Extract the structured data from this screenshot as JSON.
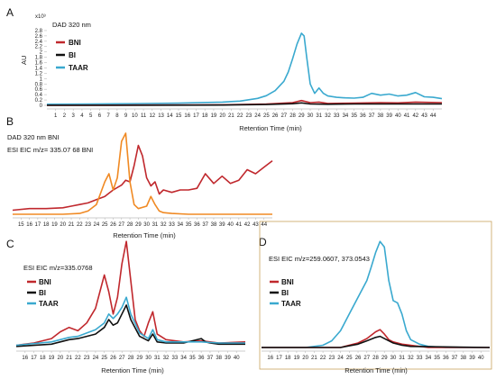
{
  "colors": {
    "BNI": "#c0282d",
    "BI": "#111111",
    "TAAR": "#3aa9cf",
    "EIC": "#f08a24",
    "axis": "#bbbbbb",
    "frame": "#c9a25c"
  },
  "chart_data": [
    {
      "panel": "A",
      "type": "line",
      "annotation": "DAD 320 nm",
      "xlabel": "Retention Time (min)",
      "ylabel": "AU",
      "yscale_label": "x10³",
      "xlim": [
        0,
        45
      ],
      "ylim": [
        0,
        3.0
      ],
      "xticks": [
        "1",
        "2",
        "3",
        "4",
        "5",
        "6",
        "7",
        "8",
        "9",
        "10",
        "11",
        "12",
        "13",
        "14",
        "15",
        "16",
        "17",
        "18",
        "19",
        "20",
        "21",
        "22",
        "23",
        "24",
        "25",
        "26",
        "27",
        "28",
        "29",
        "30",
        "31",
        "32",
        "33",
        "34",
        "35",
        "36",
        "37",
        "38",
        "39",
        "40",
        "41",
        "42",
        "43",
        "44"
      ],
      "yticks": [
        "0",
        "0.2",
        "0.4",
        "0.6",
        "0.8",
        "1",
        "1.2",
        "1.4",
        "1.6",
        "1.8",
        "2",
        "2.2",
        "2.4",
        "2.6",
        "2.8"
      ],
      "legend": [
        "BNI",
        "BI",
        "TAAR"
      ],
      "series": [
        {
          "name": "TAAR",
          "x": [
            0,
            5,
            10,
            15,
            20,
            22,
            24,
            25,
            26,
            27,
            27.5,
            28,
            28.5,
            29,
            29.3,
            29.6,
            30,
            30.5,
            31,
            31.5,
            32,
            33,
            34,
            35,
            36,
            37,
            38,
            39,
            40,
            41,
            42,
            43,
            44,
            45
          ],
          "y": [
            0.04,
            0.05,
            0.06,
            0.08,
            0.12,
            0.16,
            0.26,
            0.36,
            0.55,
            0.9,
            1.25,
            1.75,
            2.3,
            2.7,
            2.6,
            1.8,
            0.8,
            0.45,
            0.65,
            0.45,
            0.35,
            0.3,
            0.28,
            0.27,
            0.3,
            0.45,
            0.38,
            0.42,
            0.35,
            0.38,
            0.48,
            0.32,
            0.3,
            0.25
          ]
        },
        {
          "name": "BNI",
          "x": [
            0,
            10,
            20,
            25,
            28,
            29,
            30,
            31,
            32,
            35,
            38,
            40,
            42,
            45
          ],
          "y": [
            0.0,
            0.01,
            0.02,
            0.05,
            0.1,
            0.18,
            0.1,
            0.12,
            0.07,
            0.08,
            0.1,
            0.09,
            0.12,
            0.1
          ]
        },
        {
          "name": "BI",
          "x": [
            0,
            10,
            20,
            25,
            28,
            29,
            30,
            32,
            35,
            40,
            45
          ],
          "y": [
            0.0,
            0.0,
            0.01,
            0.03,
            0.06,
            0.09,
            0.05,
            0.04,
            0.05,
            0.05,
            0.05
          ]
        }
      ]
    },
    {
      "panel": "B",
      "type": "line",
      "xlabel": "Retention Time (min)",
      "xlim": [
        14,
        45
      ],
      "ylim": [
        0,
        1
      ],
      "xticks": [
        "15",
        "16",
        "17",
        "18",
        "19",
        "20",
        "21",
        "22",
        "23",
        "24",
        "25",
        "26",
        "27",
        "28",
        "29",
        "30",
        "31",
        "32",
        "33",
        "34",
        "35",
        "36",
        "37",
        "38",
        "39",
        "40",
        "41",
        "42",
        "43",
        "44"
      ],
      "legend": [
        "DAD 320 nm  BNI",
        "ESI  EIC  m/z= 335.07 68 BNI"
      ],
      "series": [
        {
          "name": "DAD 320 nm  BNI",
          "x": [
            14,
            16,
            18,
            20,
            21,
            22,
            23,
            24,
            25,
            25.5,
            26,
            27,
            27.5,
            28,
            28.5,
            29,
            29.5,
            30,
            30.5,
            31,
            31.5,
            32,
            33,
            34,
            35,
            36,
            37,
            38,
            39,
            40,
            41,
            42,
            43,
            44,
            45
          ],
          "y": [
            0.05,
            0.07,
            0.07,
            0.08,
            0.1,
            0.12,
            0.14,
            0.18,
            0.22,
            0.26,
            0.3,
            0.36,
            0.42,
            0.4,
            0.6,
            0.85,
            0.72,
            0.45,
            0.35,
            0.4,
            0.25,
            0.3,
            0.27,
            0.3,
            0.3,
            0.32,
            0.5,
            0.38,
            0.47,
            0.38,
            0.42,
            0.55,
            0.5,
            0.58,
            0.66
          ]
        },
        {
          "name": "ESI  EIC  m/z= 335.07 68 BNI",
          "x": [
            14,
            20,
            22,
            23,
            24,
            25,
            25.5,
            26,
            26.5,
            27,
            27.5,
            28,
            28.5,
            29,
            30,
            30.5,
            31,
            31.5,
            32,
            33,
            35,
            45
          ],
          "y": [
            0.0,
            0.0,
            0.01,
            0.04,
            0.12,
            0.4,
            0.5,
            0.3,
            0.45,
            0.9,
            1.0,
            0.4,
            0.12,
            0.07,
            0.1,
            0.22,
            0.12,
            0.04,
            0.02,
            0.01,
            0.0,
            0.0
          ]
        }
      ]
    },
    {
      "panel": "C",
      "type": "line",
      "annotation": "ESI  EIC  m/z=335.0768",
      "xlabel": "Retention Time (min)",
      "xlim": [
        15,
        41
      ],
      "ylim": [
        0,
        1
      ],
      "xticks": [
        "16",
        "17",
        "18",
        "19",
        "20",
        "21",
        "22",
        "23",
        "24",
        "25",
        "26",
        "27",
        "28",
        "29",
        "30",
        "31",
        "32",
        "33",
        "34",
        "35",
        "36",
        "37",
        "38",
        "39",
        "40"
      ],
      "legend": [
        "BNI",
        "BI",
        "TAAR"
      ],
      "series": [
        {
          "name": "BNI",
          "x": [
            15,
            17,
            19,
            20,
            21,
            22,
            23,
            24,
            24.5,
            25,
            25.5,
            26,
            26.5,
            27,
            27.5,
            28,
            28.5,
            29,
            29.5,
            30,
            30.5,
            31,
            32,
            34,
            36,
            38,
            41
          ],
          "y": [
            0.02,
            0.04,
            0.08,
            0.14,
            0.18,
            0.15,
            0.22,
            0.35,
            0.5,
            0.65,
            0.5,
            0.3,
            0.45,
            0.75,
            0.95,
            0.6,
            0.25,
            0.15,
            0.1,
            0.22,
            0.32,
            0.12,
            0.07,
            0.05,
            0.06,
            0.04,
            0.05
          ]
        },
        {
          "name": "BI",
          "x": [
            15,
            19,
            20,
            21,
            22,
            23,
            24,
            25,
            25.5,
            26,
            26.5,
            27,
            27.5,
            28,
            29,
            30,
            30.5,
            31,
            32,
            34,
            36,
            36.5,
            37,
            38,
            41
          ],
          "y": [
            0.01,
            0.03,
            0.05,
            0.07,
            0.08,
            0.1,
            0.12,
            0.18,
            0.25,
            0.2,
            0.22,
            0.3,
            0.38,
            0.25,
            0.1,
            0.06,
            0.12,
            0.05,
            0.04,
            0.04,
            0.08,
            0.05,
            0.04,
            0.03,
            0.03
          ]
        },
        {
          "name": "TAAR",
          "x": [
            15,
            19,
            20,
            21,
            22,
            23,
            24,
            25,
            25.5,
            26,
            26.5,
            27,
            27.5,
            28,
            29,
            30,
            30.5,
            31,
            32,
            34,
            36,
            38,
            41
          ],
          "y": [
            0.02,
            0.05,
            0.07,
            0.09,
            0.1,
            0.13,
            0.16,
            0.22,
            0.3,
            0.26,
            0.3,
            0.36,
            0.45,
            0.3,
            0.13,
            0.08,
            0.16,
            0.07,
            0.05,
            0.05,
            0.05,
            0.04,
            0.04
          ]
        }
      ]
    },
    {
      "panel": "D",
      "type": "line",
      "annotation": "ESI   EIC  m/z=259.0607,  373.0543",
      "xlabel": "Retention Time (min)",
      "xlim": [
        15,
        41
      ],
      "ylim": [
        0,
        1
      ],
      "xticks": [
        "16",
        "17",
        "18",
        "19",
        "20",
        "21",
        "22",
        "23",
        "24",
        "25",
        "26",
        "27",
        "28",
        "29",
        "30",
        "31",
        "32",
        "33",
        "34",
        "35",
        "36",
        "37",
        "38",
        "39",
        "40"
      ],
      "legend": [
        "BNI",
        "BI",
        "TAAR"
      ],
      "series": [
        {
          "name": "TAAR",
          "x": [
            15,
            20,
            22,
            23,
            24,
            25,
            26,
            27,
            27.5,
            28,
            28.5,
            29,
            29.5,
            30,
            30.5,
            31,
            31.5,
            32,
            33,
            34,
            36,
            38,
            41
          ],
          "y": [
            0.0,
            0.0,
            0.02,
            0.06,
            0.15,
            0.3,
            0.45,
            0.6,
            0.72,
            0.85,
            0.95,
            0.9,
            0.6,
            0.42,
            0.4,
            0.3,
            0.15,
            0.07,
            0.03,
            0.01,
            0.0,
            0.0,
            0.0
          ]
        },
        {
          "name": "BNI",
          "x": [
            15,
            24,
            26,
            27,
            28,
            28.5,
            29,
            29.5,
            30,
            31,
            32,
            34,
            41
          ],
          "y": [
            0.0,
            0.0,
            0.04,
            0.08,
            0.14,
            0.16,
            0.12,
            0.07,
            0.05,
            0.03,
            0.02,
            0.0,
            0.0
          ]
        },
        {
          "name": "BI",
          "x": [
            15,
            24,
            26,
            27,
            28,
            28.5,
            29,
            30,
            31,
            32,
            41
          ],
          "y": [
            0.0,
            0.0,
            0.03,
            0.06,
            0.09,
            0.1,
            0.08,
            0.04,
            0.02,
            0.01,
            0.0
          ]
        }
      ]
    }
  ]
}
